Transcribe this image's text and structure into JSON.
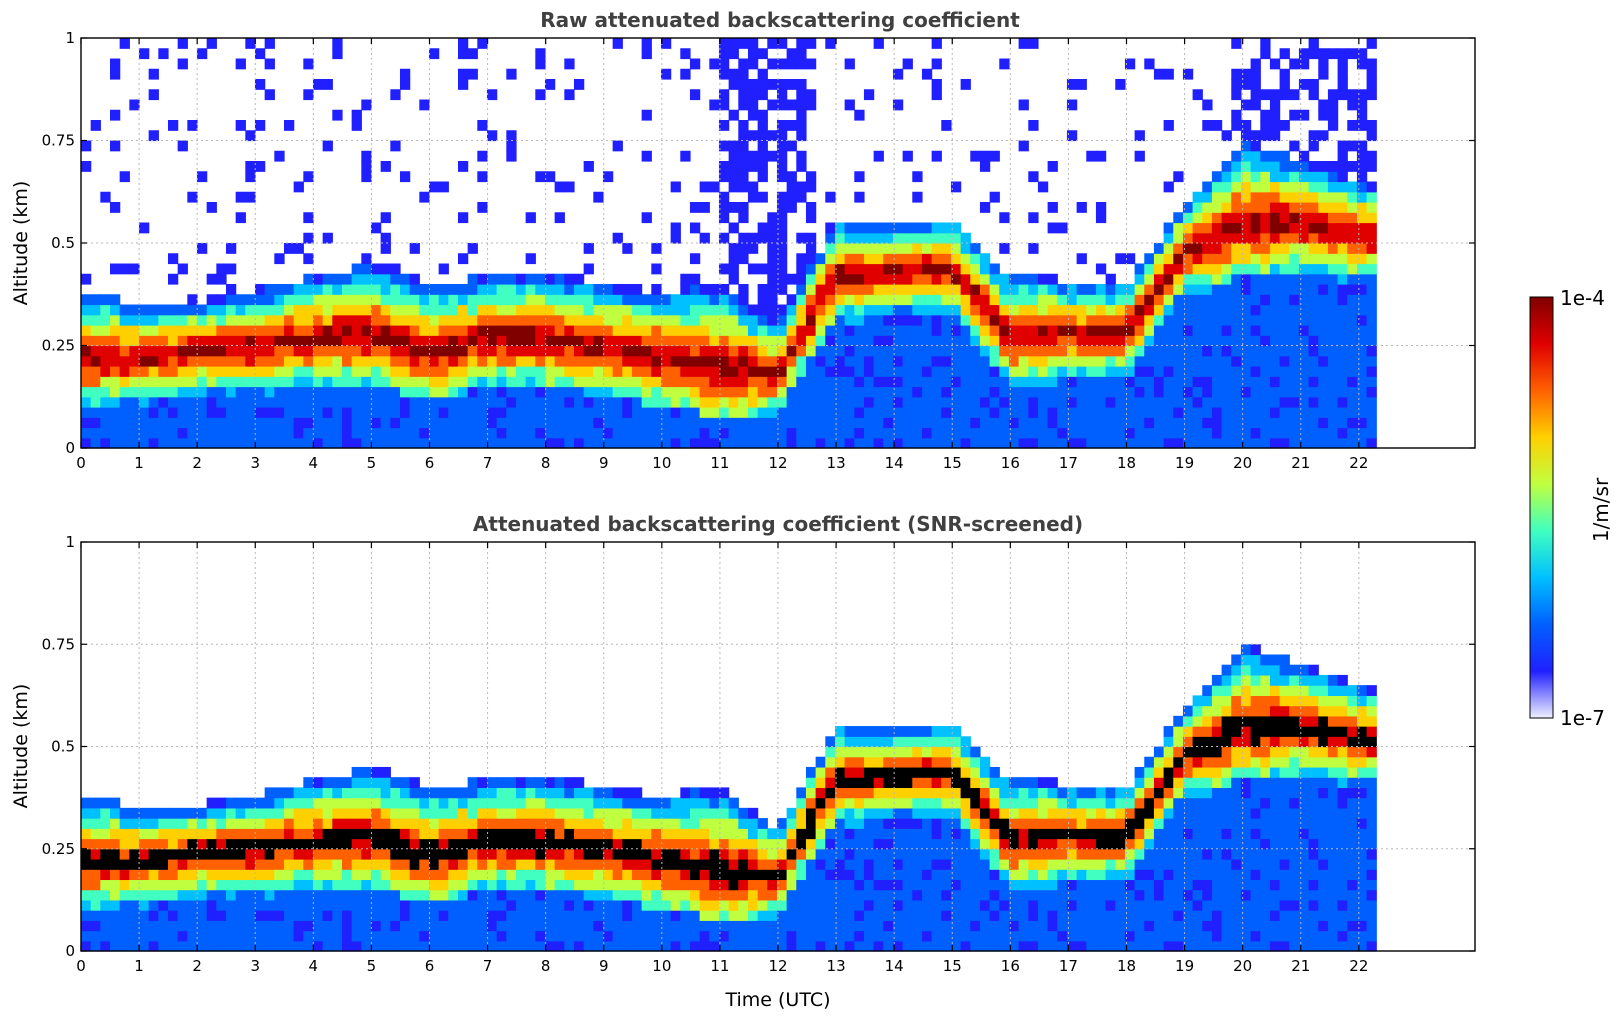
{
  "chart_data": [
    {
      "type": "heatmap",
      "title": "Raw attenuated backscattering coefficient",
      "xlabel": "",
      "ylabel": "Altitude (km)",
      "xlim": [
        0,
        24
      ],
      "ylim": [
        0,
        1
      ],
      "x_ticks": [
        "0",
        "1",
        "2",
        "3",
        "4",
        "5",
        "6",
        "7",
        "8",
        "9",
        "10",
        "11",
        "12",
        "13",
        "14",
        "15",
        "16",
        "17",
        "18",
        "19",
        "20",
        "21",
        "22"
      ],
      "y_ticks": [
        {
          "value": 0,
          "label": "0"
        },
        {
          "value": 0.25,
          "label": "0.25"
        },
        {
          "value": 0.5,
          "label": "0.5"
        },
        {
          "value": 0.75,
          "label": "0.75"
        },
        {
          "value": 1,
          "label": "1"
        }
      ],
      "data_end_time": 22.3,
      "screened": false,
      "layer_top_km": [
        [
          0,
          0.38
        ],
        [
          1,
          0.35
        ],
        [
          2,
          0.36
        ],
        [
          3,
          0.38
        ],
        [
          4,
          0.42
        ],
        [
          5,
          0.45
        ],
        [
          6,
          0.4
        ],
        [
          7,
          0.42
        ],
        [
          8,
          0.43
        ],
        [
          9,
          0.4
        ],
        [
          10,
          0.38
        ],
        [
          11,
          0.4
        ],
        [
          12,
          0.3
        ],
        [
          13,
          0.55
        ],
        [
          14,
          0.55
        ],
        [
          15,
          0.56
        ],
        [
          16,
          0.42
        ],
        [
          17,
          0.41
        ],
        [
          18,
          0.4
        ],
        [
          19,
          0.6
        ],
        [
          20,
          0.75
        ],
        [
          21,
          0.7
        ],
        [
          22,
          0.65
        ]
      ],
      "layer_core_km": [
        [
          0,
          0.22
        ],
        [
          1,
          0.22
        ],
        [
          2,
          0.24
        ],
        [
          3,
          0.25
        ],
        [
          4,
          0.27
        ],
        [
          5,
          0.28
        ],
        [
          6,
          0.23
        ],
        [
          7,
          0.27
        ],
        [
          8,
          0.27
        ],
        [
          9,
          0.25
        ],
        [
          10,
          0.22
        ],
        [
          11,
          0.2
        ],
        [
          12,
          0.18
        ],
        [
          13,
          0.42
        ],
        [
          14,
          0.43
        ],
        [
          15,
          0.44
        ],
        [
          16,
          0.27
        ],
        [
          17,
          0.28
        ],
        [
          18,
          0.28
        ],
        [
          19,
          0.48
        ],
        [
          20,
          0.55
        ],
        [
          21,
          0.55
        ],
        [
          22,
          0.52
        ]
      ]
    },
    {
      "type": "heatmap",
      "title": "Attenuated backscattering coefficient (SNR-screened)",
      "xlabel": "Time (UTC)",
      "ylabel": "Altitude (km)",
      "xlim": [
        0,
        24
      ],
      "ylim": [
        0,
        1
      ],
      "x_ticks": [
        "0",
        "1",
        "2",
        "3",
        "4",
        "5",
        "6",
        "7",
        "8",
        "9",
        "10",
        "11",
        "12",
        "13",
        "14",
        "15",
        "16",
        "17",
        "18",
        "19",
        "20",
        "21",
        "22"
      ],
      "y_ticks": [
        {
          "value": 0,
          "label": "0"
        },
        {
          "value": 0.25,
          "label": "0.25"
        },
        {
          "value": 0.5,
          "label": "0.5"
        },
        {
          "value": 0.75,
          "label": "0.75"
        },
        {
          "value": 1,
          "label": "1"
        }
      ],
      "data_end_time": 22.3,
      "screened": true
    }
  ],
  "colorbar": {
    "label": "1/m/sr",
    "max_label": "1e-4",
    "min_label": "1e-7",
    "colors": [
      "#f0f0ff",
      "#2020ff",
      "#0060ff",
      "#00c0ff",
      "#40ffc0",
      "#c0ff40",
      "#ffd000",
      "#ff6000",
      "#e00000",
      "#800000"
    ]
  }
}
